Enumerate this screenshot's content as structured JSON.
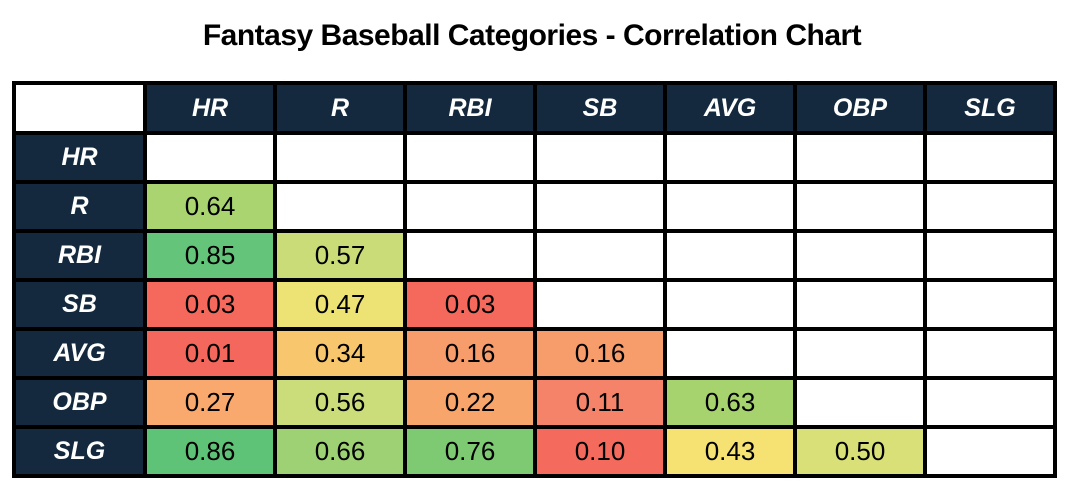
{
  "title": "Fantasy Baseball Categories - Correlation Chart",
  "colors": {
    "header_navy": "#14293E",
    "border_black": "#000000",
    "title_text": "#FFFFFF",
    "cell_text": "#000000",
    "empty_cell": "#FFFFFF"
  },
  "chart_data": {
    "type": "heatmap",
    "title": "Fantasy Baseball Categories - Correlation Chart",
    "categories": [
      "HR",
      "R",
      "RBI",
      "SB",
      "AVG",
      "OBP",
      "SLG"
    ],
    "row_labels": [
      "HR",
      "R",
      "RBI",
      "SB",
      "AVG",
      "OBP",
      "SLG"
    ],
    "values": [
      [
        null,
        null,
        null,
        null,
        null,
        null,
        null
      ],
      [
        0.64,
        null,
        null,
        null,
        null,
        null,
        null
      ],
      [
        0.85,
        0.57,
        null,
        null,
        null,
        null,
        null
      ],
      [
        0.03,
        0.47,
        0.03,
        null,
        null,
        null,
        null
      ],
      [
        0.01,
        0.34,
        0.16,
        0.16,
        null,
        null,
        null
      ],
      [
        0.27,
        0.56,
        0.22,
        0.11,
        0.63,
        null,
        null
      ],
      [
        0.86,
        0.66,
        0.76,
        0.1,
        0.43,
        0.5,
        null
      ]
    ],
    "cell_colors": [
      [
        null,
        null,
        null,
        null,
        null,
        null,
        null
      ],
      [
        "#A9D46F",
        null,
        null,
        null,
        null,
        null,
        null
      ],
      [
        "#63C47A",
        "#C9DC78",
        null,
        null,
        null,
        null,
        null
      ],
      [
        "#F4695C",
        "#EDE274",
        "#F4695C",
        null,
        null,
        null,
        null
      ],
      [
        "#F4675C",
        "#F8C76D",
        "#F79C6B",
        "#F79C6B",
        null,
        null,
        null
      ],
      [
        "#F9A96E",
        "#CBDD7A",
        "#F8A56C",
        "#F5836A",
        "#A7D36F",
        null,
        null
      ],
      [
        "#5FC377",
        "#9ED173",
        "#7DCA73",
        "#F46A5C",
        "#F5E273",
        "#D8E077",
        null
      ]
    ],
    "colorscale": {
      "low": "#F8696B",
      "mid": "#FFEB84",
      "high": "#63BE7B"
    },
    "layout": {
      "matrix_shape": "lower-triangular",
      "diagonal": "empty",
      "grid": true,
      "legend": false
    }
  }
}
